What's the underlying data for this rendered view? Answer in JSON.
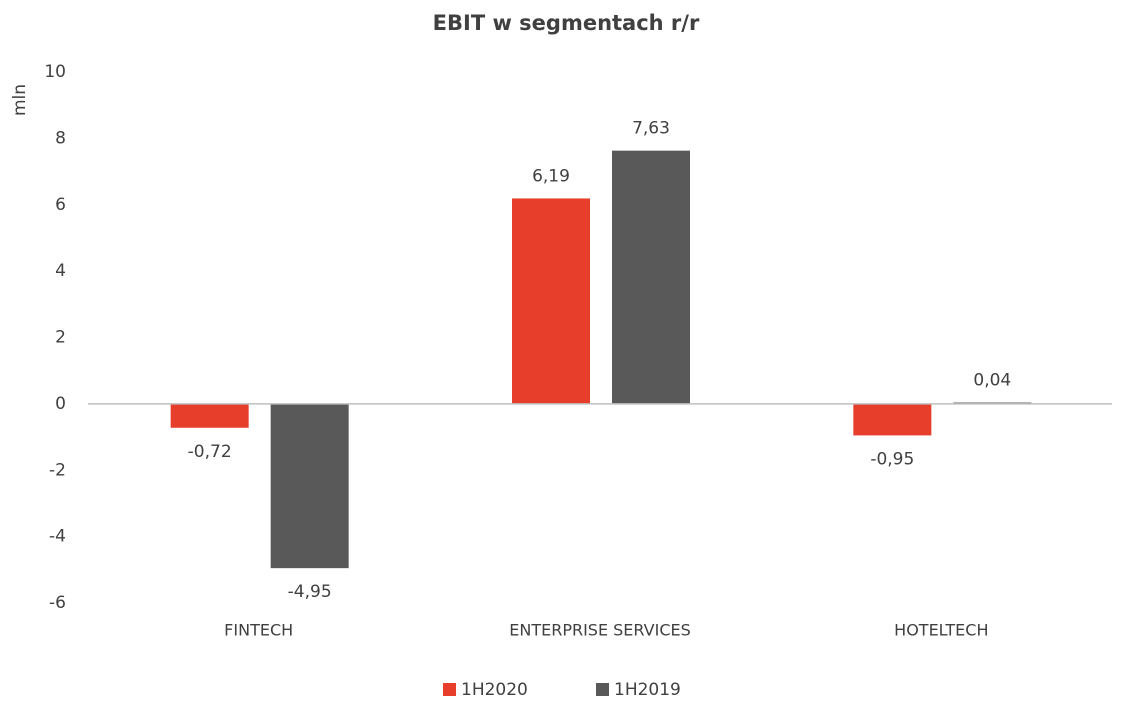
{
  "chart_data": {
    "type": "bar",
    "title": "EBIT w segmentach r/r",
    "y_label": "mln",
    "categories": [
      "FINTECH",
      "ENTERPRISE SERVICES",
      "HOTELTECH"
    ],
    "series": [
      {
        "name": "1H2020",
        "color": "#e63e2a",
        "values": [
          -0.72,
          6.19,
          -0.95
        ],
        "value_labels": [
          "-0,72",
          "6,19",
          "-0,95"
        ]
      },
      {
        "name": "1H2019",
        "color": "#595959",
        "values": [
          -4.95,
          7.63,
          0.04
        ],
        "value_labels": [
          "-4,95",
          "7,63",
          "0,04"
        ]
      }
    ],
    "ylim": [
      -6,
      10
    ],
    "yticks": [
      -6,
      -4,
      -2,
      0,
      2,
      4,
      6,
      8,
      10
    ],
    "grid": false,
    "legend": "bottom"
  }
}
